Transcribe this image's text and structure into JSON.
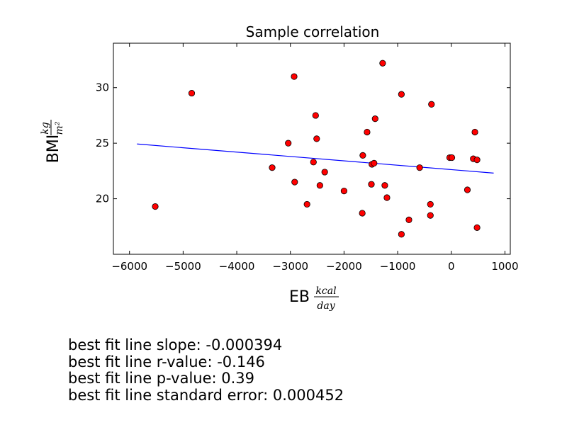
{
  "chart_data": {
    "type": "scatter",
    "title": "Sample correlation",
    "xlabel": "EB",
    "xlabel_unit": {
      "numerator": "kcal",
      "denominator": "day"
    },
    "ylabel": "BMI",
    "ylabel_unit": {
      "numerator": "kg",
      "denominator": "m²"
    },
    "xlim": [
      -6300,
      1100
    ],
    "ylim": [
      15,
      34
    ],
    "xticks": [
      -6000,
      -5000,
      -4000,
      -3000,
      -2000,
      -1000,
      0,
      1000
    ],
    "xtick_labels": [
      "−6000",
      "−5000",
      "−4000",
      "−3000",
      "−2000",
      "−1000",
      "0",
      "1000"
    ],
    "yticks": [
      20,
      25,
      30
    ],
    "ytick_labels": [
      "20",
      "25",
      "30"
    ],
    "grid": false,
    "marker_color": "#ff0000",
    "line_color": "#0000ff",
    "points": [
      {
        "x": -5520,
        "y": 19.3
      },
      {
        "x": -4840,
        "y": 29.5
      },
      {
        "x": -3340,
        "y": 22.8
      },
      {
        "x": -3040,
        "y": 25.0
      },
      {
        "x": -2930,
        "y": 31.0
      },
      {
        "x": -2920,
        "y": 21.5
      },
      {
        "x": -2690,
        "y": 19.5
      },
      {
        "x": -2570,
        "y": 23.3
      },
      {
        "x": -2530,
        "y": 27.5
      },
      {
        "x": -2510,
        "y": 25.4
      },
      {
        "x": -2450,
        "y": 21.2
      },
      {
        "x": -2360,
        "y": 22.4
      },
      {
        "x": -2000,
        "y": 20.7
      },
      {
        "x": -1660,
        "y": 18.7
      },
      {
        "x": -1650,
        "y": 23.9
      },
      {
        "x": -1570,
        "y": 26.0
      },
      {
        "x": -1490,
        "y": 21.3
      },
      {
        "x": -1480,
        "y": 23.1
      },
      {
        "x": -1440,
        "y": 23.2
      },
      {
        "x": -1420,
        "y": 27.2
      },
      {
        "x": -1280,
        "y": 32.2
      },
      {
        "x": -1240,
        "y": 21.2
      },
      {
        "x": -1200,
        "y": 20.1
      },
      {
        "x": -930,
        "y": 29.4
      },
      {
        "x": -930,
        "y": 16.8
      },
      {
        "x": -790,
        "y": 18.1
      },
      {
        "x": -590,
        "y": 22.8
      },
      {
        "x": -390,
        "y": 19.5
      },
      {
        "x": -390,
        "y": 18.5
      },
      {
        "x": -370,
        "y": 28.5
      },
      {
        "x": -30,
        "y": 23.7
      },
      {
        "x": 10,
        "y": 23.7
      },
      {
        "x": 300,
        "y": 20.8
      },
      {
        "x": 410,
        "y": 23.6
      },
      {
        "x": 440,
        "y": 26.0
      },
      {
        "x": 480,
        "y": 23.5
      },
      {
        "x": 480,
        "y": 17.4
      }
    ],
    "fit_line": {
      "x": [
        -5860,
        790
      ],
      "y": [
        24.93,
        22.31
      ]
    }
  },
  "stats": {
    "slope_label": "best fit line slope: -0.000394",
    "r_label": "best fit line r-value: -0.146",
    "p_label": "best fit line p-value: 0.39",
    "se_label": "best fit line standard error: 0.000452"
  }
}
